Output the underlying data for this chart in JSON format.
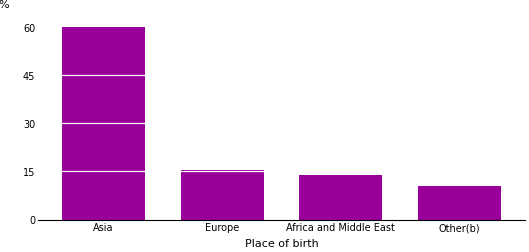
{
  "categories": [
    "Asia",
    "Europe",
    "Africa and Middle East",
    "Other(b)"
  ],
  "values": [
    60.0,
    15.3,
    13.9,
    10.5
  ],
  "bar_color": "#990099",
  "bar_width": 0.7,
  "ylabel": "%",
  "xlabel": "Place of birth",
  "yticks": [
    0,
    15,
    30,
    45,
    60
  ],
  "ylim": [
    0,
    65
  ],
  "background_color": "#ffffff",
  "tick_label_fontsize": 7,
  "axis_label_fontsize": 8,
  "ylabel_fontsize": 8,
  "white_lines": [
    15,
    30,
    45
  ],
  "figwidth": 5.29,
  "figheight": 2.53,
  "dpi": 100
}
